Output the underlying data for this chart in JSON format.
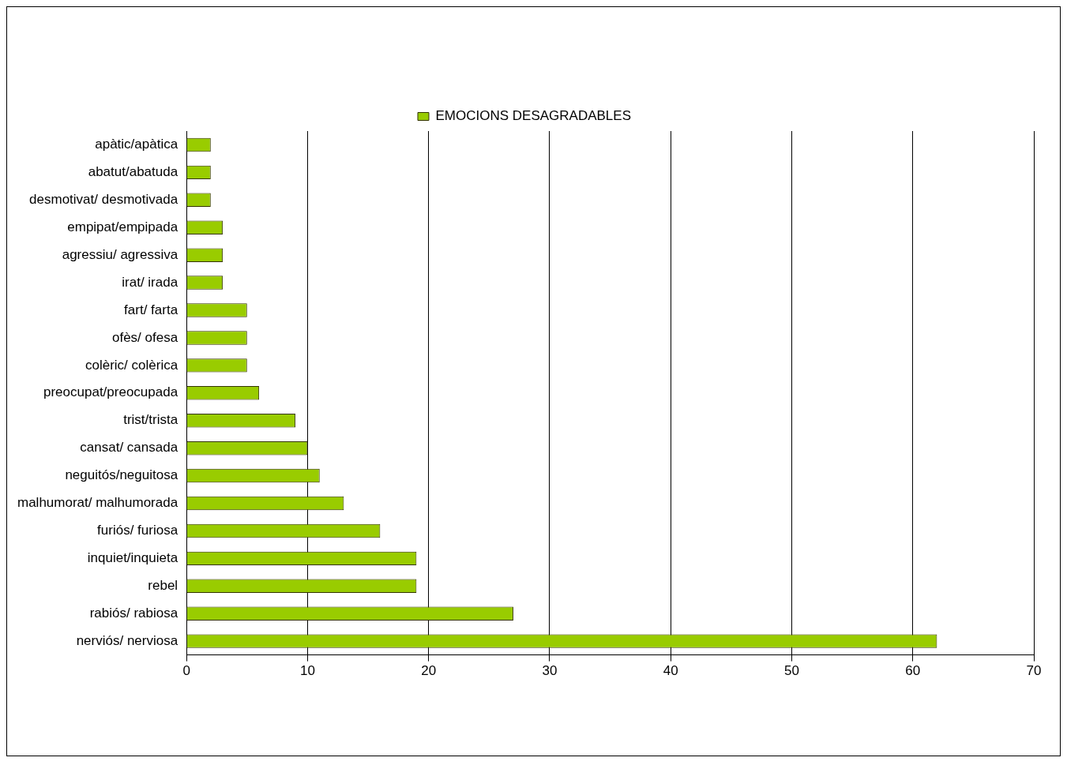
{
  "chart_data": {
    "type": "bar",
    "orientation": "horizontal",
    "categories": [
      "apàtic/apàtica",
      "abatut/abatuda",
      "desmotivat/ desmotivada",
      "empipat/empipada",
      "agressiu/ agressiva",
      "irat/ irada",
      "fart/ farta",
      "ofès/ ofesa",
      "colèric/ colèrica",
      "preocupat/preocupada",
      "trist/trista",
      "cansat/ cansada",
      "neguitós/neguitosa",
      "malhumorat/ malhumorada",
      "furiós/ furiosa",
      "inquiet/inquieta",
      "rebel",
      "rabiós/ rabiosa",
      "nerviós/ nerviosa"
    ],
    "series": [
      {
        "name": "EMOCIONS DESAGRADABLES",
        "color": "#99cc00",
        "values": [
          2,
          2,
          2,
          3,
          3,
          3,
          5,
          5,
          5,
          6,
          9,
          10,
          11,
          13,
          16,
          19,
          19,
          27,
          62
        ]
      }
    ],
    "xlim": [
      0,
      70
    ],
    "xticks": [
      0,
      10,
      20,
      30,
      40,
      50,
      60,
      70
    ],
    "grid": "x",
    "legend": "top"
  }
}
